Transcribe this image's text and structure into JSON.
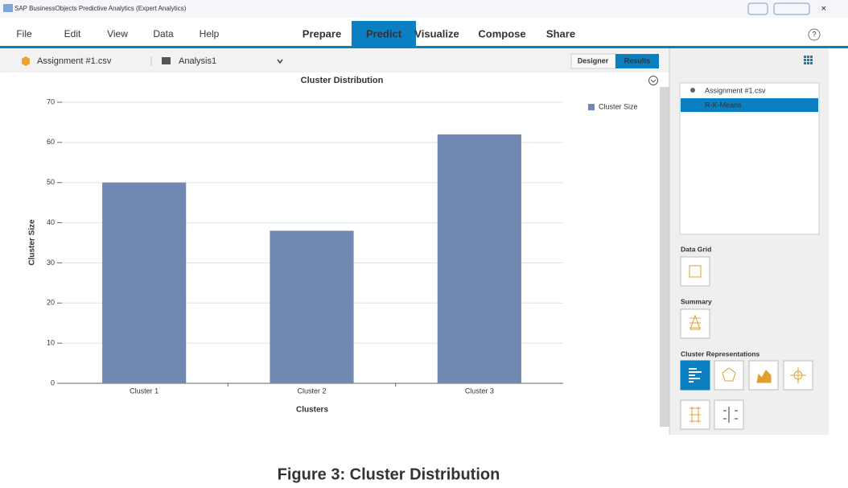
{
  "window_title": "SAP BusinessObjects Predictive Analytics (Expert Analytics)",
  "menu": [
    "File",
    "Edit",
    "View",
    "Data",
    "Help"
  ],
  "tabs": [
    "Prepare",
    "Predict",
    "Visualize",
    "Compose",
    "Share"
  ],
  "toolbar": {
    "dataset": "Assignment #1.csv",
    "analysis": "Analysis1",
    "views": [
      "Designer",
      "Results"
    ]
  },
  "panel": {
    "tree": [
      "Assignment #1.csv",
      "R-K-Means"
    ],
    "sections": [
      "Data Grid",
      "Summary",
      "Cluster Representations"
    ]
  },
  "chart_data": {
    "type": "bar",
    "title": "Cluster Distribution",
    "x_label": "Clusters",
    "y_label": "Cluster Size",
    "categories": [
      "Cluster 1",
      "Cluster 2",
      "Cluster 3"
    ],
    "series": [
      {
        "name": "Cluster Size",
        "color": "#7189b0",
        "values": [
          50,
          38,
          62
        ]
      }
    ],
    "ylim": [
      0,
      70
    ],
    "yticks": [
      0,
      10,
      20,
      30,
      40,
      50,
      60,
      70
    ],
    "grid": true,
    "legend": "right"
  },
  "caption": "Figure 3: Cluster Distribution"
}
